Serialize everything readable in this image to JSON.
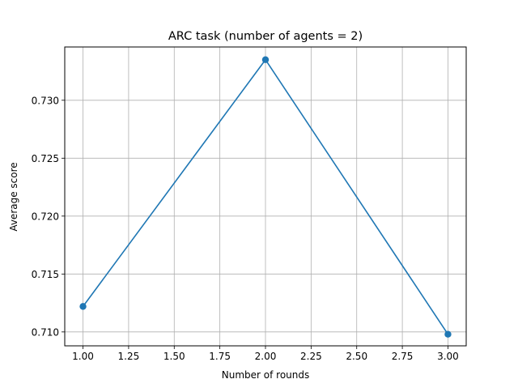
{
  "chart_data": {
    "type": "line",
    "title": "ARC task (number of agents = 2)",
    "xlabel": "Number of rounds",
    "ylabel": "Average score",
    "x": [
      1.0,
      2.0,
      3.0
    ],
    "series": [
      {
        "values": [
          0.7122,
          0.7335,
          0.7098
        ],
        "color": "#1f77b4",
        "marker": "circle"
      }
    ],
    "xlim": [
      0.9,
      3.1
    ],
    "ylim": [
      0.7088,
      0.7346
    ],
    "xticks": [
      1.0,
      1.25,
      1.5,
      1.75,
      2.0,
      2.25,
      2.5,
      2.75,
      3.0
    ],
    "xtick_labels": [
      "1.00",
      "1.25",
      "1.50",
      "1.75",
      "2.00",
      "2.25",
      "2.50",
      "2.75",
      "3.00"
    ],
    "yticks": [
      0.71,
      0.715,
      0.72,
      0.725,
      0.73
    ],
    "ytick_labels": [
      "0.710",
      "0.715",
      "0.720",
      "0.725",
      "0.730"
    ],
    "grid": true,
    "legend": "none"
  }
}
